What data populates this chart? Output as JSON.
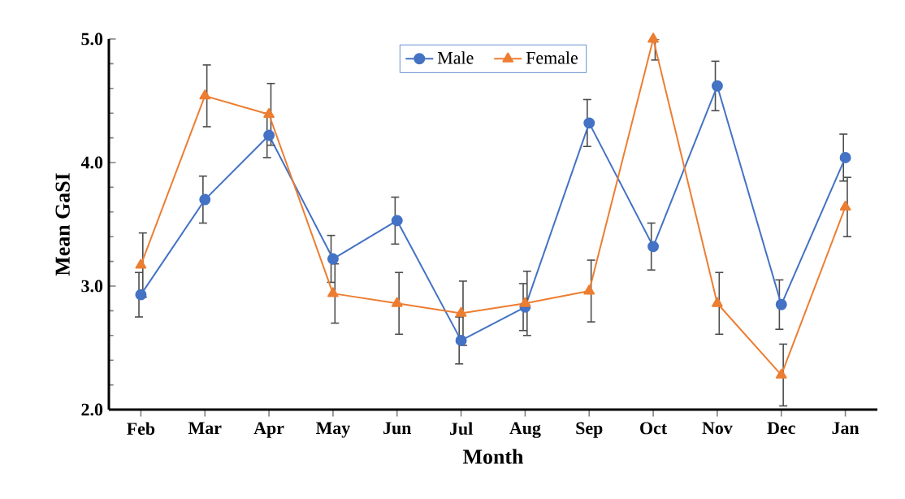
{
  "chart_data": {
    "type": "line",
    "xlabel": "Month",
    "ylabel": "Mean GaSI",
    "categories": [
      "Feb",
      "Mar",
      "Apr",
      "May",
      "Jun",
      "Jul",
      "Aug",
      "Sep",
      "Oct",
      "Nov",
      "Dec",
      "Jan"
    ],
    "series": [
      {
        "name": "Male",
        "color": "#4472c4",
        "marker": "circle",
        "values": [
          2.93,
          3.7,
          4.22,
          3.22,
          3.53,
          2.56,
          2.83,
          4.32,
          3.32,
          4.62,
          2.85,
          4.04
        ],
        "errors": [
          0.18,
          0.19,
          0.18,
          0.19,
          0.19,
          0.19,
          0.19,
          0.19,
          0.19,
          0.2,
          0.2,
          0.19
        ]
      },
      {
        "name": "Female",
        "color": "#ed7d31",
        "marker": "triangle",
        "values": [
          3.17,
          4.54,
          4.39,
          2.94,
          2.86,
          2.78,
          2.86,
          2.96,
          5.0,
          2.86,
          2.28,
          3.64
        ],
        "errors": [
          0.26,
          0.25,
          0.25,
          0.24,
          0.25,
          0.26,
          0.26,
          0.25,
          [
            4.83,
            5.0
          ],
          0.25,
          0.25,
          0.24
        ]
      }
    ],
    "ylim": [
      2.0,
      5.0
    ],
    "yticks": [
      {
        "value": 2,
        "label": "2.0"
      },
      {
        "value": 3,
        "label": "3.0"
      },
      {
        "value": 4,
        "label": "4.0"
      },
      {
        "value": 5,
        "label": "5.0"
      }
    ],
    "legend": "top",
    "grid": false
  }
}
